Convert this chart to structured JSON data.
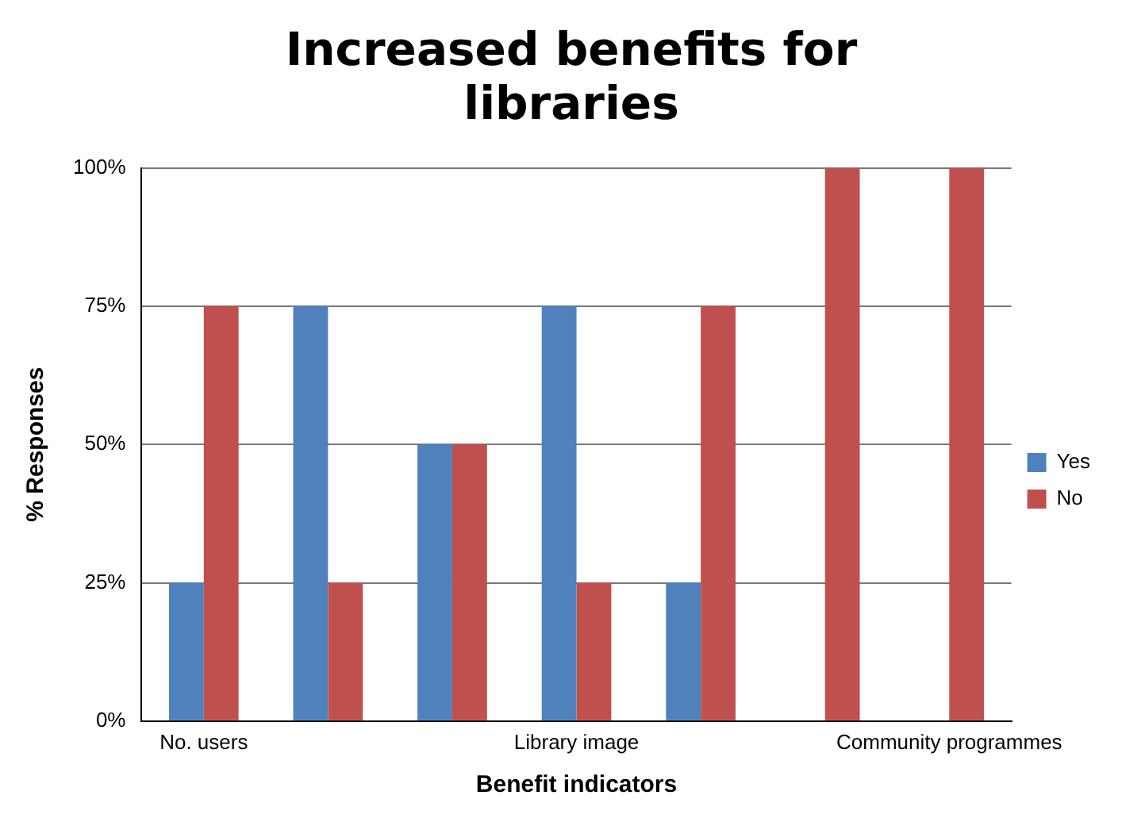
{
  "chart_data": {
    "type": "bar",
    "title": "Increased benefits for libraries",
    "xlabel": "Benefit indicators",
    "ylabel": "% Responses",
    "categories": [
      "No. users",
      null,
      null,
      "Library image",
      null,
      null,
      "Community programmes"
    ],
    "series": [
      {
        "name": "Yes",
        "color": "#4f81bd",
        "values": [
          25,
          75,
          50,
          75,
          25,
          0,
          0
        ]
      },
      {
        "name": "No",
        "color": "#c0504d",
        "values": [
          75,
          25,
          50,
          25,
          75,
          100,
          100
        ]
      }
    ],
    "ylim": [
      0,
      100
    ],
    "yticks": [
      {
        "value": 0,
        "label": "0%"
      },
      {
        "value": 25,
        "label": "25%"
      },
      {
        "value": 50,
        "label": "50%"
      },
      {
        "value": 75,
        "label": "75%"
      },
      {
        "value": 100,
        "label": "100%"
      }
    ],
    "grid": "y",
    "legend": "right"
  }
}
